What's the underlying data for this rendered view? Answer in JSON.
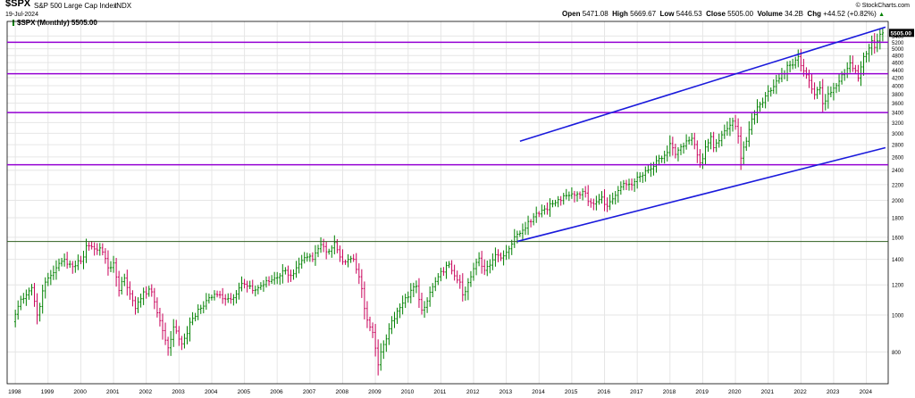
{
  "header": {
    "symbol": "$SPX",
    "name": "S&P 500 Large Cap Index",
    "exchange": "INDX",
    "date": "19-Jul-2024",
    "copyright": "© StockCharts.com",
    "legend": "$SPX (Monthly) 5505.00",
    "open_label": "Open",
    "open_value": "5471.08",
    "high_label": "High",
    "high_value": "5669.67",
    "low_label": "Low",
    "low_value": "5446.53",
    "close_label": "Close",
    "close_value": "5505.00",
    "volume_label": "Volume",
    "volume_value": "34.2B",
    "chg_label": "Chg",
    "chg_value": "+44.52 (+0.82%)",
    "chg_arrow": "▲",
    "last_price_tag": "5505.00"
  },
  "colors": {
    "up": "#008000",
    "down": "#c8005a",
    "support_resistance": "#9400d3",
    "trend_channel": "#1a1adc",
    "breakout_line": "#2f5f1f",
    "grid": "#e6e6e6",
    "price_tag": "#000000"
  },
  "chart_data": {
    "type": "candlestick",
    "title": "$SPX S&P 500 Large Cap Index INDX",
    "series_name": "$SPX (Monthly)",
    "y_scale": "log",
    "ylim": [
      660,
      5900
    ],
    "y_ticks": [
      800,
      1000,
      1200,
      1400,
      1600,
      1800,
      2000,
      2200,
      2400,
      2600,
      2800,
      3000,
      3200,
      3400,
      3600,
      3800,
      4000,
      4200,
      4400,
      4600,
      4800,
      5000,
      5200,
      5400
    ],
    "x_ticks": [
      "1998",
      "1999",
      "2000",
      "2001",
      "2002",
      "2003",
      "2004",
      "2005",
      "2006",
      "2007",
      "2008",
      "2009",
      "2010",
      "2011",
      "2012",
      "2013",
      "2014",
      "2015",
      "2016",
      "2017",
      "2018",
      "2019",
      "2020",
      "2021",
      "2022",
      "2023",
      "2024"
    ],
    "x_range": [
      "1997-10",
      "2024-09"
    ],
    "grid": true,
    "horizontal_levels": [
      {
        "name": "level-5200",
        "value": 5200,
        "style": "support_resistance"
      },
      {
        "name": "level-4300",
        "value": 4300,
        "style": "support_resistance"
      },
      {
        "name": "level-3400",
        "value": 3400,
        "style": "support_resistance"
      },
      {
        "name": "level-2480",
        "value": 2480,
        "style": "support_resistance"
      },
      {
        "name": "level-1560",
        "value": 1560,
        "style": "breakout_line",
        "from": "1997-10"
      }
    ],
    "trendlines": [
      {
        "name": "upper-channel-line",
        "from": [
          "2013-06",
          2860
        ],
        "to": [
          "2024-08",
          5700
        ]
      },
      {
        "name": "lower-channel-line",
        "from": [
          "2013-05",
          1560
        ],
        "to": [
          "2024-08",
          2750
        ]
      }
    ],
    "anchors": [
      [
        "1997-12",
        960
      ],
      [
        "1998-03",
        1100
      ],
      [
        "1998-07",
        1180
      ],
      [
        "1998-09",
        1000
      ],
      [
        "1998-12",
        1220
      ],
      [
        "1999-04",
        1330
      ],
      [
        "1999-07",
        1400
      ],
      [
        "1999-10",
        1340
      ],
      [
        "2000-02",
        1420
      ],
      [
        "2000-03",
        1520
      ],
      [
        "2000-08",
        1500
      ],
      [
        "2000-11",
        1330
      ],
      [
        "2001-01",
        1370
      ],
      [
        "2001-03",
        1160
      ],
      [
        "2001-05",
        1250
      ],
      [
        "2001-09",
        1040
      ],
      [
        "2001-12",
        1150
      ],
      [
        "2002-03",
        1150
      ],
      [
        "2002-07",
        910
      ],
      [
        "2002-09",
        820
      ],
      [
        "2002-11",
        930
      ],
      [
        "2003-02",
        840
      ],
      [
        "2003-06",
        980
      ],
      [
        "2003-12",
        1110
      ],
      [
        "2004-03",
        1130
      ],
      [
        "2004-08",
        1100
      ],
      [
        "2004-12",
        1210
      ],
      [
        "2005-04",
        1160
      ],
      [
        "2005-12",
        1250
      ],
      [
        "2006-04",
        1310
      ],
      [
        "2006-06",
        1270
      ],
      [
        "2006-12",
        1420
      ],
      [
        "2007-02",
        1400
      ],
      [
        "2007-05",
        1530
      ],
      [
        "2007-08",
        1470
      ],
      [
        "2007-10",
        1550
      ],
      [
        "2008-01",
        1380
      ],
      [
        "2008-05",
        1400
      ],
      [
        "2008-07",
        1260
      ],
      [
        "2008-10",
        970
      ],
      [
        "2008-12",
        900
      ],
      [
        "2009-02",
        740
      ],
      [
        "2009-03",
        800
      ],
      [
        "2009-06",
        920
      ],
      [
        "2009-12",
        1110
      ],
      [
        "2010-04",
        1190
      ],
      [
        "2010-06",
        1030
      ],
      [
        "2010-12",
        1260
      ],
      [
        "2011-04",
        1360
      ],
      [
        "2011-08",
        1220
      ],
      [
        "2011-09",
        1130
      ],
      [
        "2011-12",
        1260
      ],
      [
        "2012-03",
        1410
      ],
      [
        "2012-05",
        1310
      ],
      [
        "2012-09",
        1440
      ],
      [
        "2012-12",
        1430
      ],
      [
        "2013-05",
        1630
      ],
      [
        "2013-12",
        1850
      ],
      [
        "2014-06",
        1960
      ],
      [
        "2014-12",
        2060
      ],
      [
        "2015-05",
        2110
      ],
      [
        "2015-08",
        1970
      ],
      [
        "2015-12",
        2040
      ],
      [
        "2016-02",
        1930
      ],
      [
        "2016-07",
        2170
      ],
      [
        "2016-12",
        2240
      ],
      [
        "2017-06",
        2420
      ],
      [
        "2017-12",
        2670
      ],
      [
        "2018-01",
        2820
      ],
      [
        "2018-03",
        2640
      ],
      [
        "2018-09",
        2910
      ],
      [
        "2018-12",
        2510
      ],
      [
        "2019-04",
        2940
      ],
      [
        "2019-05",
        2750
      ],
      [
        "2019-12",
        3230
      ],
      [
        "2020-02",
        2950
      ],
      [
        "2020-03",
        2580
      ],
      [
        "2020-07",
        3270
      ],
      [
        "2020-12",
        3760
      ],
      [
        "2021-06",
        4300
      ],
      [
        "2021-12",
        4770
      ],
      [
        "2022-02",
        4370
      ],
      [
        "2022-04",
        4130
      ],
      [
        "2022-06",
        3790
      ],
      [
        "2022-08",
        3950
      ],
      [
        "2022-09",
        3590
      ],
      [
        "2022-12",
        3840
      ],
      [
        "2023-03",
        4110
      ],
      [
        "2023-07",
        4590
      ],
      [
        "2023-10",
        4190
      ],
      [
        "2023-12",
        4770
      ],
      [
        "2024-03",
        5250
      ],
      [
        "2024-04",
        5040
      ],
      [
        "2024-06",
        5460
      ],
      [
        "2024-07",
        5505
      ]
    ]
  }
}
